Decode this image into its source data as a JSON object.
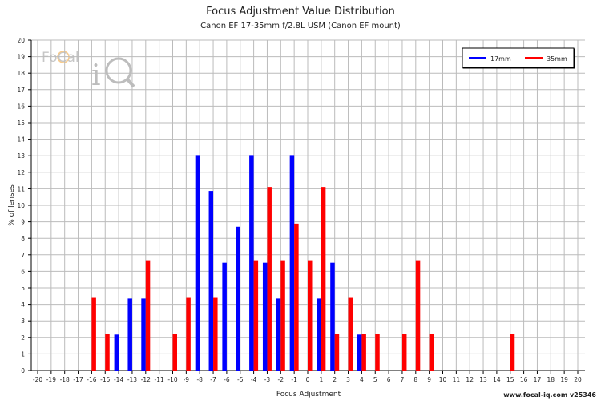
{
  "chart_data": {
    "type": "bar",
    "title": "Focus Adjustment Value Distribution",
    "subtitle": "Canon EF 17-35mm f/2.8L USM (Canon EF mount)",
    "xlabel": "Focus Adjustment",
    "ylabel": "% of lenses",
    "xlim": [
      -20,
      20
    ],
    "ylim": [
      0,
      20
    ],
    "grid": true,
    "legend_placement": "top-right",
    "series": [
      {
        "name": "17mm",
        "color": "#0000ff",
        "points": [
          [
            -14,
            2.17
          ],
          [
            -13,
            4.35
          ],
          [
            -12,
            4.35
          ],
          [
            -8,
            13.04
          ],
          [
            -7,
            10.87
          ],
          [
            -6,
            6.52
          ],
          [
            -5,
            8.7
          ],
          [
            -4,
            13.04
          ],
          [
            -3,
            6.52
          ],
          [
            -2,
            4.35
          ],
          [
            -1,
            13.04
          ],
          [
            1,
            4.35
          ],
          [
            2,
            6.52
          ],
          [
            4,
            2.17
          ]
        ]
      },
      {
        "name": "35mm",
        "color": "#ff0000",
        "points": [
          [
            -16,
            4.44
          ],
          [
            -15,
            2.22
          ],
          [
            -12,
            6.67
          ],
          [
            -10,
            2.22
          ],
          [
            -9,
            4.44
          ],
          [
            -7,
            4.44
          ],
          [
            -4,
            6.67
          ],
          [
            -3,
            11.11
          ],
          [
            -2,
            6.67
          ],
          [
            -1,
            8.89
          ],
          [
            0,
            6.67
          ],
          [
            1,
            11.11
          ],
          [
            2,
            2.22
          ],
          [
            3,
            4.44
          ],
          [
            4,
            2.22
          ],
          [
            5,
            2.22
          ],
          [
            7,
            2.22
          ],
          [
            8,
            6.67
          ],
          [
            9,
            2.22
          ],
          [
            15,
            2.22
          ]
        ]
      }
    ]
  },
  "logo": "FoCal iQ",
  "footer": "www.focal-iq.com  v25346"
}
